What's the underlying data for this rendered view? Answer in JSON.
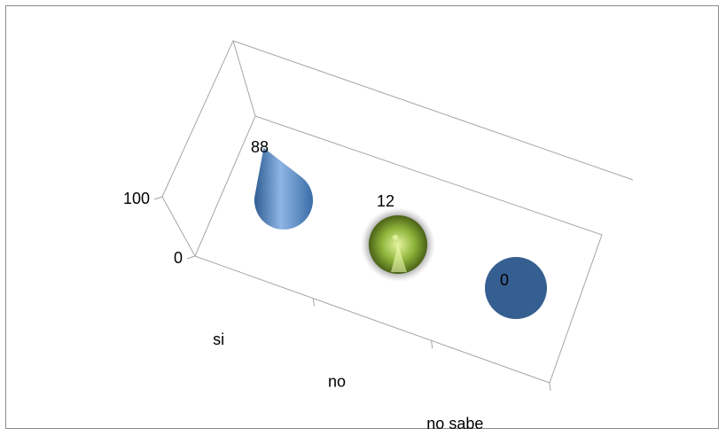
{
  "chart_data": {
    "type": "bar",
    "shape": "cone-3d",
    "categories": [
      "si",
      "no",
      "no sabe"
    ],
    "values": [
      88,
      12,
      0
    ],
    "data_labels": [
      "88",
      "12",
      "0"
    ],
    "y_tick_labels": [
      "0",
      "100"
    ],
    "ylim": [
      0,
      100
    ],
    "title": "",
    "xlabel": "",
    "ylabel": "",
    "legend": "none",
    "grid": false,
    "colors": {
      "si": "#4f81bd",
      "no": "#9bbb59",
      "no_sabe": "#365f91",
      "axis": "#a6a6a6",
      "frame": "#8c8c8c"
    }
  }
}
